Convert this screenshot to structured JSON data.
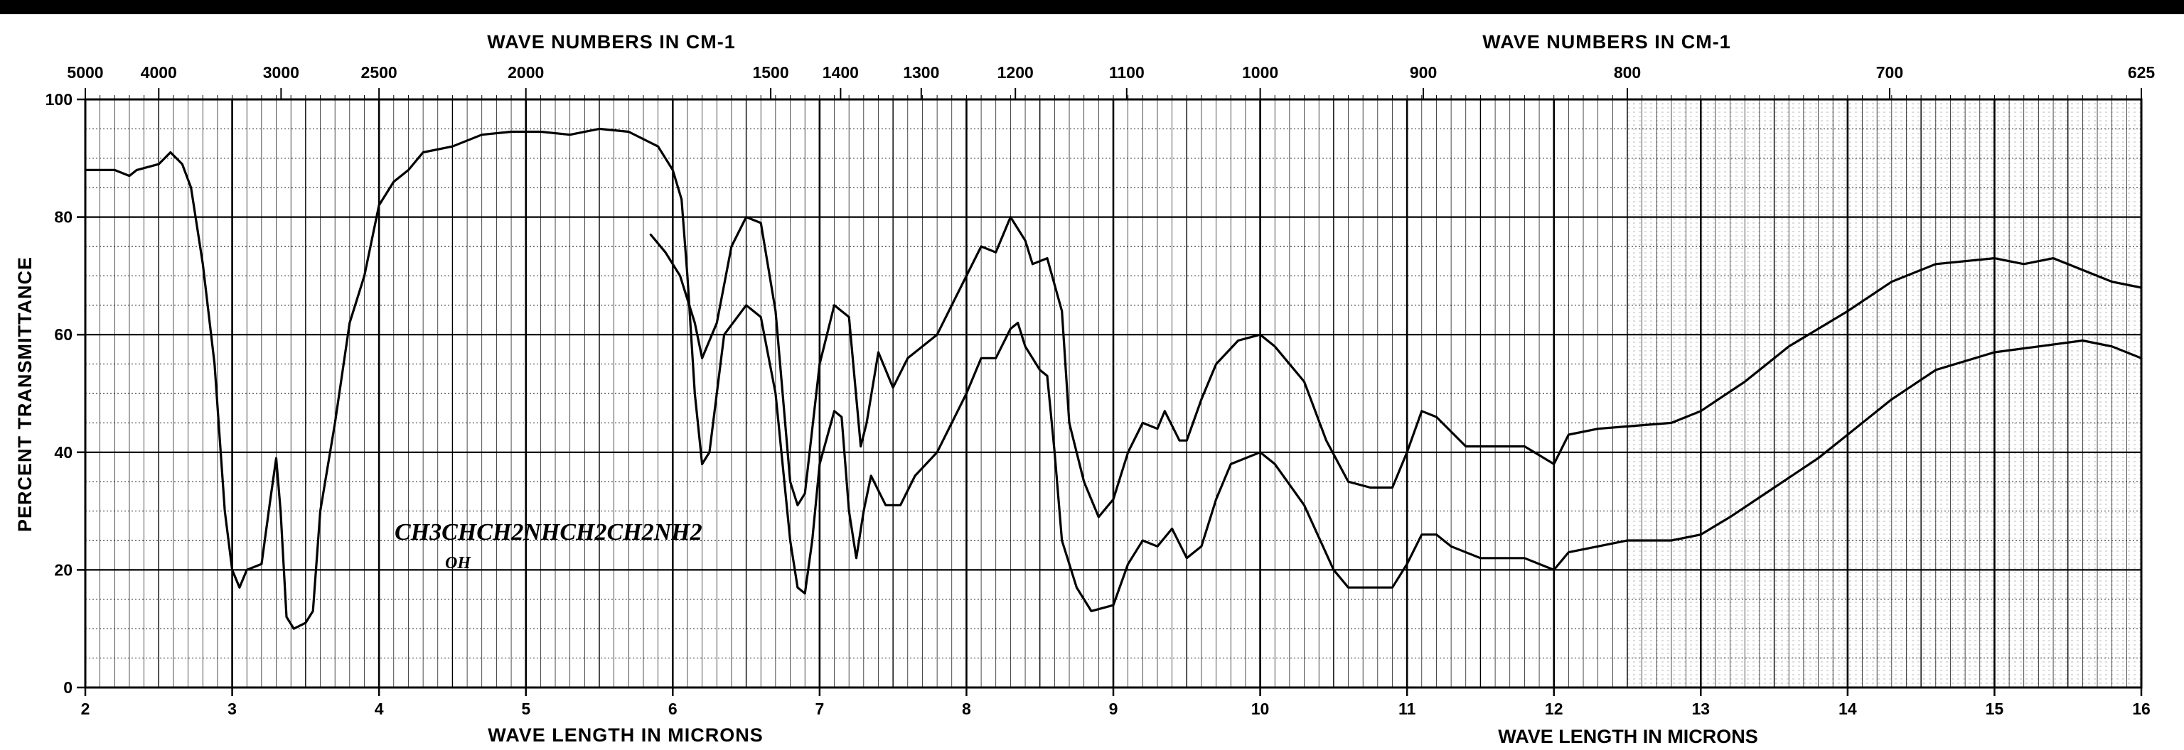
{
  "chart_data": {
    "type": "line",
    "top_axis": {
      "title_left": "WAVE NUMBERS IN CM-1",
      "title_right": "WAVE NUMBERS IN CM-1",
      "ticks": [
        {
          "label": "5000",
          "micron": 2.0
        },
        {
          "label": "4000",
          "micron": 2.5
        },
        {
          "label": "3000",
          "micron": 3.333
        },
        {
          "label": "2500",
          "micron": 4.0
        },
        {
          "label": "2000",
          "micron": 5.0
        },
        {
          "label": "1500",
          "micron": 6.667
        },
        {
          "label": "1400",
          "micron": 7.143
        },
        {
          "label": "1300",
          "micron": 7.692
        },
        {
          "label": "1200",
          "micron": 8.333
        },
        {
          "label": "1100",
          "micron": 9.091
        },
        {
          "label": "1000",
          "micron": 10.0
        },
        {
          "label": "900",
          "micron": 11.111
        },
        {
          "label": "800",
          "micron": 12.5
        },
        {
          "label": "700",
          "micron": 14.286
        },
        {
          "label": "625",
          "micron": 16.0
        }
      ]
    },
    "xlabel_left": "WAVE LENGTH IN MICRONS",
    "xlabel_right": "WAVE LENGTH IN MICRONS",
    "ylabel": "PERCENT TRANSMITTANCE",
    "xlim": [
      2,
      16
    ],
    "ylim": [
      0,
      100
    ],
    "x_ticks": [
      2,
      3,
      4,
      5,
      6,
      7,
      8,
      9,
      10,
      11,
      12,
      13,
      14,
      15,
      16
    ],
    "y_ticks": [
      0,
      20,
      40,
      60,
      80,
      100
    ],
    "grid": true,
    "annotation": {
      "line1": "CH3CHCH2NHCH2CH2NH2",
      "line2": "OH"
    },
    "series": [
      {
        "values": [
          [
            2.0,
            88
          ],
          [
            2.1,
            88
          ],
          [
            2.2,
            88
          ],
          [
            2.3,
            87
          ],
          [
            2.35,
            88
          ],
          [
            2.5,
            89
          ],
          [
            2.58,
            91
          ],
          [
            2.66,
            89
          ],
          [
            2.72,
            85
          ],
          [
            2.8,
            72
          ],
          [
            2.88,
            55
          ],
          [
            2.95,
            30
          ],
          [
            3.0,
            20
          ],
          [
            3.05,
            17
          ],
          [
            3.1,
            20
          ],
          [
            3.2,
            21
          ],
          [
            3.26,
            32
          ],
          [
            3.3,
            39
          ],
          [
            3.33,
            30
          ],
          [
            3.37,
            12
          ],
          [
            3.42,
            10
          ],
          [
            3.5,
            11
          ],
          [
            3.55,
            13
          ],
          [
            3.6,
            30
          ],
          [
            3.7,
            45
          ],
          [
            3.8,
            62
          ],
          [
            3.9,
            70
          ],
          [
            4.0,
            82
          ],
          [
            4.1,
            86
          ],
          [
            4.2,
            88
          ],
          [
            4.3,
            91
          ],
          [
            4.5,
            92
          ],
          [
            4.7,
            94
          ],
          [
            4.9,
            94.5
          ],
          [
            5.1,
            94.5
          ],
          [
            5.3,
            94
          ],
          [
            5.5,
            95
          ],
          [
            5.7,
            94.5
          ],
          [
            5.9,
            92
          ],
          [
            6.0,
            88
          ],
          [
            6.06,
            83
          ],
          [
            6.1,
            70
          ],
          [
            6.15,
            50
          ],
          [
            6.2,
            38
          ],
          [
            6.25,
            40
          ],
          [
            6.35,
            60
          ],
          [
            6.5,
            65
          ],
          [
            6.6,
            63
          ],
          [
            6.7,
            50
          ],
          [
            6.8,
            25
          ],
          [
            6.85,
            17
          ],
          [
            6.9,
            16
          ],
          [
            6.95,
            25
          ],
          [
            7.0,
            38
          ],
          [
            7.1,
            47
          ],
          [
            7.15,
            46
          ],
          [
            7.2,
            30
          ],
          [
            7.25,
            22
          ],
          [
            7.3,
            30
          ],
          [
            7.35,
            36
          ],
          [
            7.45,
            31
          ],
          [
            7.55,
            31
          ],
          [
            7.65,
            36
          ],
          [
            7.8,
            40
          ],
          [
            8.0,
            50
          ],
          [
            8.1,
            56
          ],
          [
            8.2,
            56
          ],
          [
            8.3,
            61
          ],
          [
            8.35,
            62
          ],
          [
            8.4,
            58
          ],
          [
            8.5,
            54
          ],
          [
            8.55,
            53
          ],
          [
            8.6,
            40
          ],
          [
            8.65,
            25
          ],
          [
            8.75,
            17
          ],
          [
            8.85,
            13
          ],
          [
            9.0,
            14
          ],
          [
            9.1,
            21
          ],
          [
            9.2,
            25
          ],
          [
            9.3,
            24
          ],
          [
            9.4,
            27
          ],
          [
            9.5,
            22
          ],
          [
            9.6,
            24
          ],
          [
            9.7,
            32
          ],
          [
            9.8,
            38
          ],
          [
            10.0,
            40
          ],
          [
            10.1,
            38
          ],
          [
            10.3,
            31
          ],
          [
            10.5,
            20
          ],
          [
            10.6,
            17
          ],
          [
            10.8,
            17
          ],
          [
            10.9,
            17
          ],
          [
            11.0,
            21
          ],
          [
            11.1,
            26
          ],
          [
            11.2,
            26
          ],
          [
            11.3,
            24
          ],
          [
            11.5,
            22
          ],
          [
            11.8,
            22
          ],
          [
            12.0,
            20
          ],
          [
            12.1,
            23
          ],
          [
            12.3,
            24
          ],
          [
            12.5,
            25
          ],
          [
            12.8,
            25
          ],
          [
            13.0,
            26
          ],
          [
            13.2,
            29
          ],
          [
            13.5,
            34
          ],
          [
            13.8,
            39
          ],
          [
            14.0,
            43
          ],
          [
            14.3,
            49
          ],
          [
            14.6,
            54
          ],
          [
            15.0,
            57
          ],
          [
            15.3,
            58
          ],
          [
            15.6,
            59
          ],
          [
            15.8,
            58
          ],
          [
            16.0,
            56
          ]
        ]
      },
      {
        "values": [
          [
            5.85,
            77
          ],
          [
            5.95,
            74
          ],
          [
            6.05,
            70
          ],
          [
            6.15,
            62
          ],
          [
            6.2,
            56
          ],
          [
            6.3,
            62
          ],
          [
            6.4,
            75
          ],
          [
            6.5,
            80
          ],
          [
            6.6,
            79
          ],
          [
            6.7,
            64
          ],
          [
            6.8,
            35
          ],
          [
            6.85,
            31
          ],
          [
            6.9,
            33
          ],
          [
            7.0,
            55
          ],
          [
            7.1,
            65
          ],
          [
            7.2,
            63
          ],
          [
            7.28,
            41
          ],
          [
            7.32,
            45
          ],
          [
            7.4,
            57
          ],
          [
            7.5,
            51
          ],
          [
            7.6,
            56
          ],
          [
            7.8,
            60
          ],
          [
            8.0,
            70
          ],
          [
            8.1,
            75
          ],
          [
            8.2,
            74
          ],
          [
            8.3,
            80
          ],
          [
            8.4,
            76
          ],
          [
            8.45,
            72
          ],
          [
            8.55,
            73
          ],
          [
            8.65,
            64
          ],
          [
            8.7,
            45
          ],
          [
            8.8,
            35
          ],
          [
            8.9,
            29
          ],
          [
            9.0,
            32
          ],
          [
            9.1,
            40
          ],
          [
            9.2,
            45
          ],
          [
            9.3,
            44
          ],
          [
            9.35,
            47
          ],
          [
            9.45,
            42
          ],
          [
            9.5,
            42
          ],
          [
            9.6,
            49
          ],
          [
            9.7,
            55
          ],
          [
            9.85,
            59
          ],
          [
            10.0,
            60
          ],
          [
            10.1,
            58
          ],
          [
            10.3,
            52
          ],
          [
            10.45,
            42
          ],
          [
            10.6,
            35
          ],
          [
            10.75,
            34
          ],
          [
            10.9,
            34
          ],
          [
            11.0,
            40
          ],
          [
            11.1,
            47
          ],
          [
            11.2,
            46
          ],
          [
            11.4,
            41
          ],
          [
            11.8,
            41
          ],
          [
            12.0,
            38
          ],
          [
            12.1,
            43
          ],
          [
            12.3,
            44
          ],
          [
            12.8,
            45
          ],
          [
            13.0,
            47
          ],
          [
            13.3,
            52
          ],
          [
            13.6,
            58
          ],
          [
            14.0,
            64
          ],
          [
            14.3,
            69
          ],
          [
            14.6,
            72
          ],
          [
            15.0,
            73
          ],
          [
            15.2,
            72
          ],
          [
            15.4,
            73
          ],
          [
            15.6,
            71
          ],
          [
            15.8,
            69
          ],
          [
            16.0,
            68
          ]
        ]
      }
    ]
  }
}
